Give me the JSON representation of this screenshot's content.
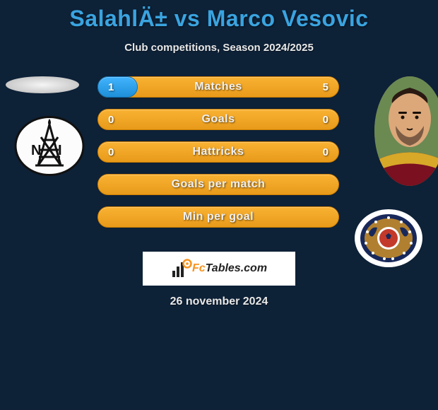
{
  "header": {
    "title": "SalahlÄ± vs Marco Vesovic",
    "subtitle": "Club competitions, Season 2024/2025"
  },
  "colors": {
    "background": "#0d2137",
    "title_color": "#3aa4e0",
    "bar_orange_top": "#f9b233",
    "bar_orange_bottom": "#e89a1a",
    "bar_blue_top": "#42b4ff",
    "bar_blue_bottom": "#1e8fd8",
    "text_light": "#e8e8e8"
  },
  "players": {
    "left": {
      "name": "SalahlÄ±",
      "photo_icon": "player-silhouette",
      "club_icon": "oil-derrick-badge"
    },
    "right": {
      "name": "Marco Vesovic",
      "photo_icon": "player-photo",
      "club_icon": "qarabag-badge"
    }
  },
  "stats": {
    "rows": [
      {
        "label": "Matches",
        "left": "1",
        "right": "5",
        "fill_pct": 16.7
      },
      {
        "label": "Goals",
        "left": "0",
        "right": "0",
        "fill_pct": 0
      },
      {
        "label": "Hattricks",
        "left": "0",
        "right": "0",
        "fill_pct": 0
      },
      {
        "label": "Goals per match",
        "left": "",
        "right": "",
        "fill_pct": 0
      },
      {
        "label": "Min per goal",
        "left": "",
        "right": "",
        "fill_pct": 0
      }
    ]
  },
  "attribution": {
    "site_prefix": "Fc",
    "site_rest": "Tables.com"
  },
  "footer": {
    "date": "26 november 2024"
  }
}
